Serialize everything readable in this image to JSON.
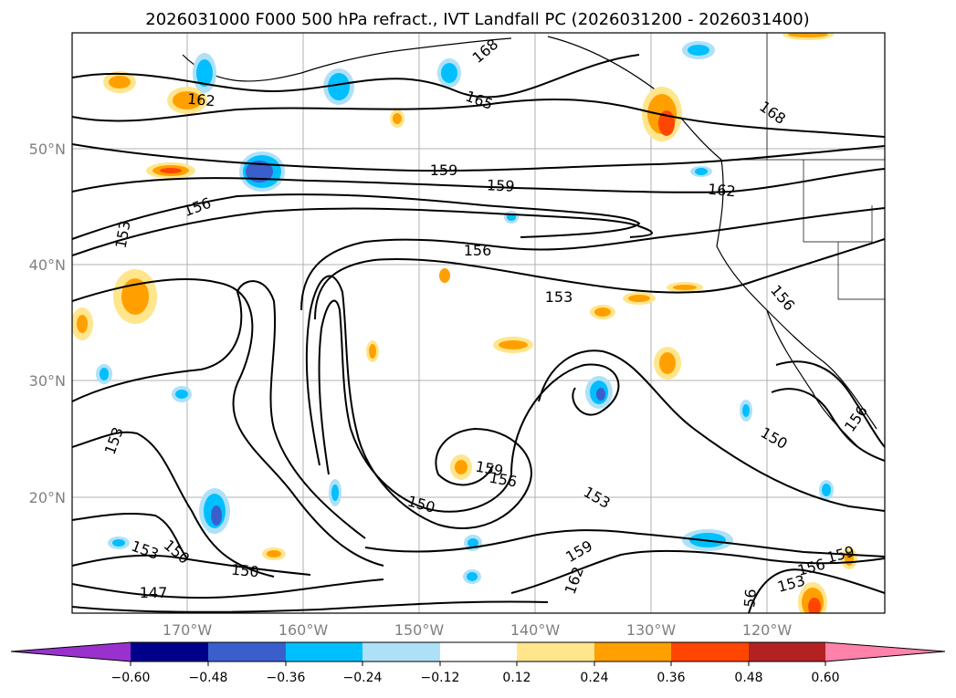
{
  "title": "2026031000 F000 500 hPa refract., IVT Landfall PC (2026031200 - 2026031400)",
  "map": {
    "lat_labels": [
      "50°N",
      "40°N",
      "30°N",
      "20°N"
    ],
    "lon_labels": [
      "170°W",
      "160°W",
      "150°W",
      "140°W",
      "130°W",
      "120°W"
    ],
    "contour_labels": [
      "168",
      "165",
      "162",
      "159",
      "159",
      "162",
      "156",
      "153",
      "156",
      "153",
      "168",
      "156",
      "153",
      "150",
      "159",
      "156",
      "150",
      "153",
      "150",
      "156",
      "159",
      "162",
      "56",
      "153",
      "156",
      "159",
      "147",
      "150",
      "153",
      "150"
    ],
    "shading": {
      "positive_colors": [
        "#ffe68c",
        "#ffa000",
        "#ff4500",
        "#b22222"
      ],
      "negative_colors": [
        "#aee1f7",
        "#00bfff",
        "#3a5fcd",
        "#00008b"
      ]
    }
  },
  "colorbar": {
    "ticks": [
      "−0.60",
      "−0.48",
      "−0.36",
      "−0.24",
      "−0.12",
      "0.12",
      "0.24",
      "0.36",
      "0.48",
      "0.60"
    ],
    "colors": [
      "#9932cc",
      "#00008b",
      "#3a5fcd",
      "#00bfff",
      "#aee1f7",
      "#ffffff",
      "#ffe68c",
      "#ffa000",
      "#ff4500",
      "#b22222",
      "#ff82ab"
    ]
  }
}
